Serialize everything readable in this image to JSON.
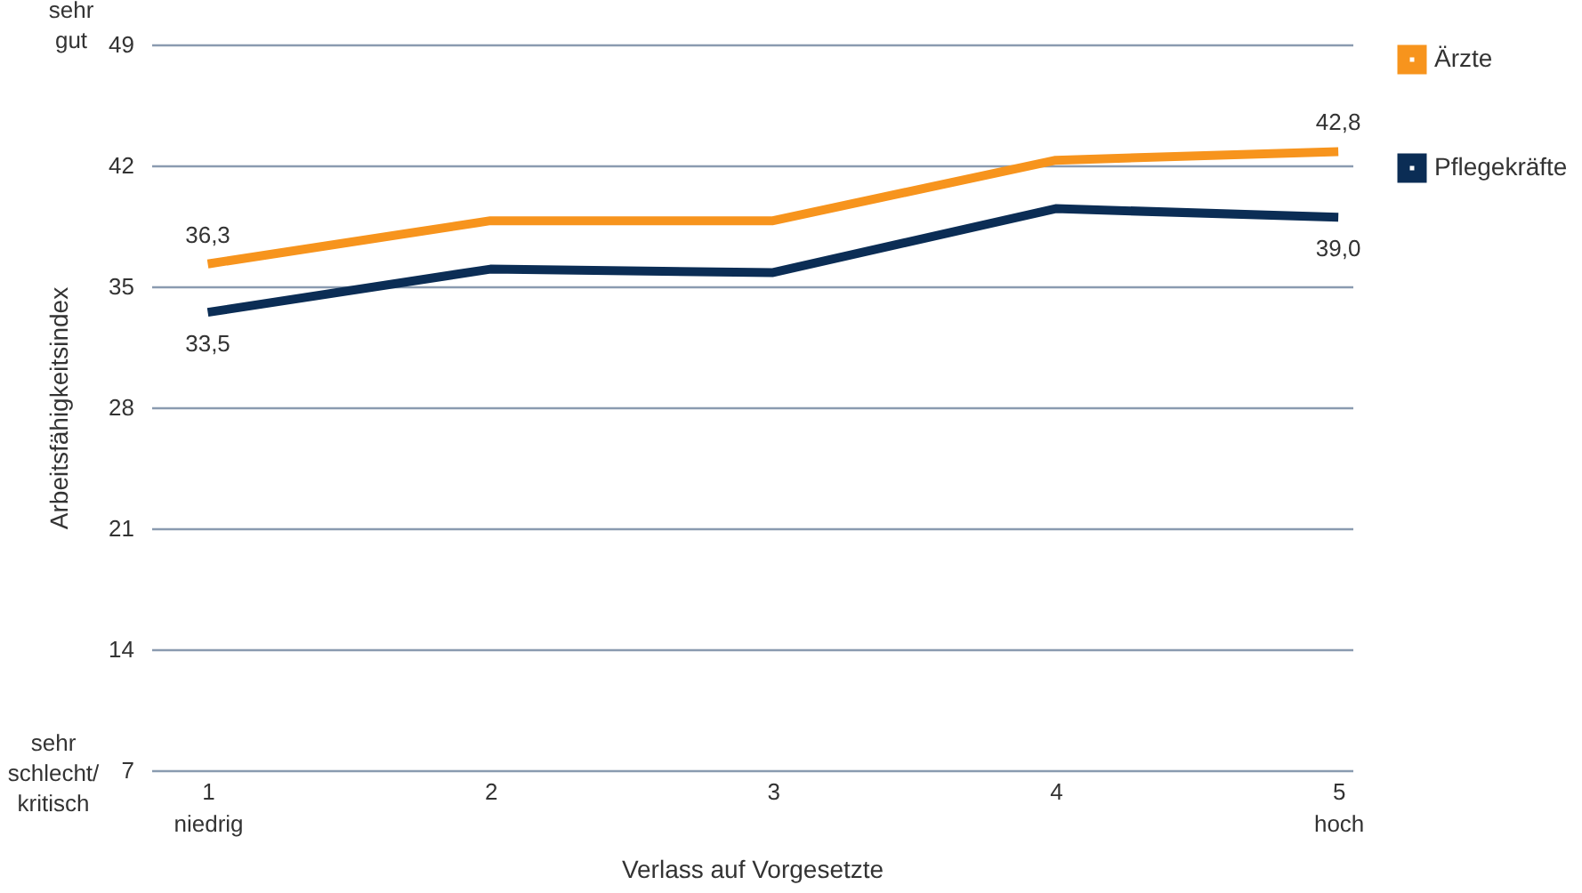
{
  "chart_data": {
    "type": "line",
    "x": [
      1,
      2,
      3,
      4,
      5
    ],
    "xlim": [
      0.8,
      5.05
    ],
    "xticks": [
      {
        "value": 1,
        "label": "1\nniedrig"
      },
      2,
      3,
      4,
      {
        "value": 5,
        "label": "5\nhoch"
      }
    ],
    "ylim": [
      7,
      49
    ],
    "yticks": [
      7,
      14,
      21,
      28,
      35,
      42,
      49
    ],
    "xlabel": "Verlass auf Vorgesetzte",
    "ylabel": "Arbeitsfähigkeitsindex",
    "series": [
      {
        "name": "Ärzte",
        "color": "#f7941d",
        "values": [
          36.3,
          38.8,
          38.8,
          42.3,
          42.8
        ],
        "value_labels": [
          "36,3",
          null,
          null,
          null,
          "42,8"
        ]
      },
      {
        "name": "Pflegekräfte",
        "color": "#0b2d55",
        "values": [
          33.5,
          36.0,
          35.8,
          39.5,
          39.0
        ],
        "value_labels": [
          "33,5",
          null,
          null,
          null,
          "39,0"
        ]
      }
    ],
    "annotations": [
      "sehr gut",
      "sehr schlecht/ kritisch"
    ],
    "grid": "y",
    "legend": "top right",
    "marker": "none",
    "line_style": "solid"
  }
}
